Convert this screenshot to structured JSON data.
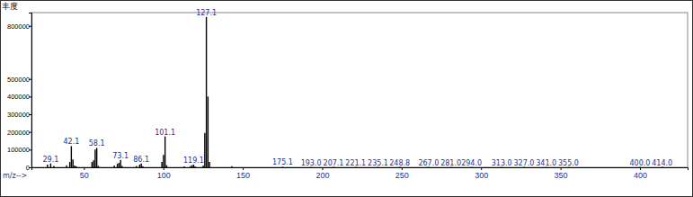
{
  "chart_data": {
    "type": "bar",
    "title": "丰度",
    "x_label": "m/z-->",
    "x": [
      27.1,
      29.1,
      31.1,
      39.1,
      41.1,
      42.1,
      43.1,
      44.1,
      45.1,
      55.1,
      56.1,
      57.1,
      58.1,
      59.1,
      69.1,
      71.1,
      72.1,
      73.1,
      74.1,
      83.1,
      85.1,
      86.1,
      87.1,
      99.1,
      100.1,
      101.1,
      102.1,
      113.1,
      117.1,
      118.1,
      119.1,
      120.1,
      125.1,
      126.1,
      127.1,
      128.1,
      129.1,
      143.1,
      175.1,
      193.0,
      207.1,
      221.1,
      235.1,
      248.8,
      267.0,
      281.0,
      294.0,
      313.0,
      327.0,
      341.0,
      355.0,
      400.0,
      414.0
    ],
    "values": [
      15000,
      22000,
      8000,
      12000,
      30000,
      120000,
      45000,
      10000,
      6000,
      30000,
      40000,
      100000,
      110000,
      8000,
      10000,
      20000,
      25000,
      42000,
      8000,
      8000,
      15000,
      22000,
      6000,
      30000,
      70000,
      175000,
      12000,
      5000,
      8000,
      12000,
      15000,
      5000,
      10000,
      195000,
      850000,
      400000,
      30000,
      6000,
      3000,
      2500,
      2500,
      2500,
      2000,
      2000,
      2000,
      2000,
      2000,
      2000,
      2000,
      2000,
      2000,
      2000,
      2000
    ],
    "color": "#000000",
    "annotations": [
      {
        "text": "29.1",
        "x": 29.1
      },
      {
        "text": "42.1",
        "x": 42.1
      },
      {
        "text": "58.1",
        "x": 58.1
      },
      {
        "text": "73.1",
        "x": 73.1
      },
      {
        "text": "86.1",
        "x": 86.1
      },
      {
        "text": "101.1",
        "x": 101.1
      },
      {
        "text": "119.1",
        "x": 119.1
      },
      {
        "text": "127.1",
        "x": 127.1
      },
      {
        "text": "175.1",
        "x": 175.1
      },
      {
        "text": "193.0",
        "x": 193.0
      },
      {
        "text": "207.1",
        "x": 207.1
      },
      {
        "text": "221.1",
        "x": 221.1
      },
      {
        "text": "235.1",
        "x": 235.1
      },
      {
        "text": "248.8",
        "x": 248.8
      },
      {
        "text": "267.0",
        "x": 267.0
      },
      {
        "text": "281.0",
        "x": 281.0
      },
      {
        "text": "294.0",
        "x": 294.0
      },
      {
        "text": "313.0",
        "x": 313.0
      },
      {
        "text": "327.0",
        "x": 327.0
      },
      {
        "text": "341.0",
        "x": 341.0
      },
      {
        "text": "355.0",
        "x": 355.0
      },
      {
        "text": "400.0",
        "x": 400.0
      },
      {
        "text": "414.0",
        "x": 414.0
      }
    ],
    "xlim": [
      17,
      430
    ],
    "xticks": [
      50,
      100,
      150,
      200,
      250,
      300,
      350,
      400
    ],
    "ylim": [
      0,
      875000
    ],
    "yticks": [
      0,
      100000,
      200000,
      300000,
      400000,
      500000,
      800000
    ],
    "grid": false
  }
}
